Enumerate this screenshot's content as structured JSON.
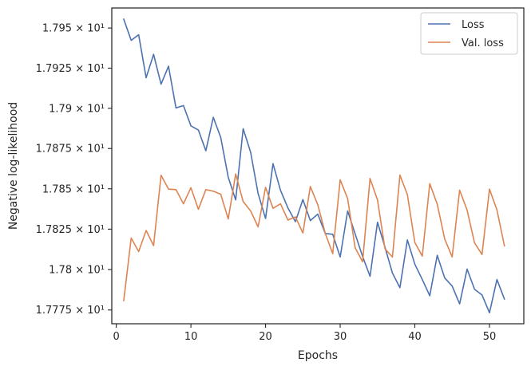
{
  "chart_data": {
    "type": "line",
    "title": "",
    "xlabel": "Epochs",
    "ylabel": "Negative log-likelihood",
    "xlim": [
      -0.6,
      54.6
    ],
    "ylim": [
      17.7665,
      17.9625
    ],
    "yscale": "log",
    "grid": false,
    "legend": "top-right",
    "x_ticks": [
      0,
      10,
      20,
      30,
      40,
      50
    ],
    "x_tick_labels": [
      "0",
      "10",
      "20",
      "30",
      "40",
      "50"
    ],
    "y_ticks": [
      17.775,
      17.8,
      17.825,
      17.85,
      17.875,
      17.9,
      17.925,
      17.95
    ],
    "y_tick_labels": [
      "1.7775 × 10¹",
      "1.78 × 10¹",
      "1.7825 × 10¹",
      "1.785 × 10¹",
      "1.7875 × 10¹",
      "1.79 × 10¹",
      "1.7925 × 10¹",
      "1.795 × 10¹"
    ],
    "x": [
      1,
      2,
      3,
      4,
      5,
      6,
      7,
      8,
      9,
      10,
      11,
      12,
      13,
      14,
      15,
      16,
      17,
      18,
      19,
      20,
      21,
      22,
      23,
      24,
      25,
      26,
      27,
      28,
      29,
      30,
      31,
      32,
      33,
      34,
      35,
      36,
      37,
      38,
      39,
      40,
      41,
      42,
      43,
      44,
      45,
      46,
      47,
      48,
      49,
      50,
      51,
      52
    ],
    "series": [
      {
        "name": "Loss",
        "color": "#4c72b0",
        "values": [
          17.9555,
          17.9423,
          17.9458,
          17.919,
          17.9336,
          17.915,
          17.9262,
          17.9002,
          17.9017,
          17.8891,
          17.8865,
          17.8736,
          17.8944,
          17.8818,
          17.8572,
          17.8431,
          17.8873,
          17.8727,
          17.8471,
          17.8316,
          17.8656,
          17.8491,
          17.8381,
          17.8296,
          17.8433,
          17.8303,
          17.8343,
          17.8223,
          17.8218,
          17.8078,
          17.8363,
          17.8221,
          17.8081,
          17.7958,
          17.8293,
          17.8138,
          17.7978,
          17.7888,
          17.8183,
          17.8033,
          17.7938,
          17.7838,
          17.8088,
          17.7948,
          17.7898,
          17.7788,
          17.8003,
          17.7878,
          17.7843,
          17.7733,
          17.7938,
          17.7818
        ]
      },
      {
        "name": "Val. loss",
        "color": "#dd8452",
        "values": [
          17.7808,
          17.8195,
          17.8111,
          17.8242,
          17.8148,
          17.8584,
          17.8498,
          17.8495,
          17.8407,
          17.8507,
          17.8373,
          17.8495,
          17.8485,
          17.8466,
          17.8313,
          17.8592,
          17.8421,
          17.8363,
          17.8264,
          17.8509,
          17.8379,
          17.8407,
          17.8306,
          17.8326,
          17.8226,
          17.8514,
          17.8401,
          17.8224,
          17.8098,
          17.8556,
          17.8439,
          17.8135,
          17.8048,
          17.8564,
          17.8431,
          17.8128,
          17.8077,
          17.8585,
          17.8464,
          17.8167,
          17.8083,
          17.8532,
          17.8405,
          17.8189,
          17.8078,
          17.8492,
          17.8368,
          17.8165,
          17.8093,
          17.8498,
          17.8369,
          17.8147
        ]
      }
    ]
  }
}
